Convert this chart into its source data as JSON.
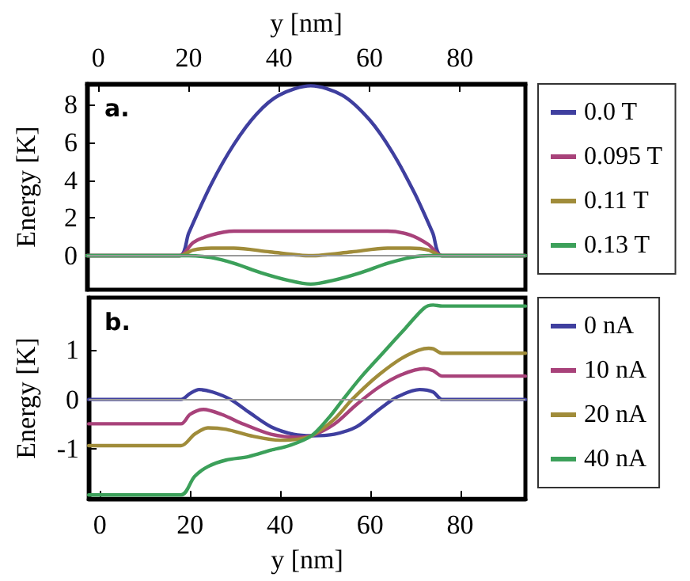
{
  "chart_data": [
    {
      "type": "line",
      "xlabel": "y [nm]",
      "ylabel": "Energy [K]",
      "annotations": [
        "a."
      ],
      "xlim": [
        -2.5,
        94.5
      ],
      "xticks": [
        0,
        20,
        40,
        60,
        80
      ],
      "ylim": [
        -1.8,
        9.1
      ],
      "yticks": [
        0,
        2,
        4,
        6,
        8
      ],
      "grid": false,
      "legend": "right",
      "marker": "none",
      "line_style": "solid",
      "ref_lines": [
        {
          "axis": "y",
          "value": 0,
          "color": "#999999"
        }
      ],
      "series": [
        {
          "name": "0.0 T",
          "color": "#3f3f9f",
          "x": [
            -2.5,
            18,
            20,
            25,
            30,
            35,
            40,
            47,
            54,
            60,
            65,
            70,
            74,
            76,
            94.5
          ],
          "values": [
            0,
            0,
            1.2,
            3.8,
            5.9,
            7.5,
            8.5,
            9,
            8.5,
            7.2,
            5.5,
            3.3,
            1.2,
            0,
            0
          ]
        },
        {
          "name": "0.095 T",
          "color": "#a8427a",
          "x": [
            -2.5,
            18,
            21,
            25,
            30,
            40,
            47,
            55,
            64,
            69,
            73,
            76,
            94.5
          ],
          "values": [
            0,
            0,
            0.7,
            1.1,
            1.3,
            1.3,
            1.3,
            1.3,
            1.3,
            1.1,
            0.6,
            0,
            0
          ]
        },
        {
          "name": "0.11 T",
          "color": "#a08c3a",
          "x": [
            -2.5,
            18,
            21,
            25,
            30,
            38,
            47,
            56,
            64,
            69,
            73,
            76,
            94.5
          ],
          "values": [
            0,
            0,
            0.3,
            0.4,
            0.4,
            0.2,
            0,
            0.2,
            0.4,
            0.4,
            0.3,
            0,
            0
          ]
        },
        {
          "name": "0.13 T",
          "color": "#3ca05a",
          "x": [
            -2.5,
            20,
            25,
            30,
            36,
            42,
            47,
            52,
            58,
            64,
            69,
            73,
            94.5
          ],
          "values": [
            0,
            0,
            -0.1,
            -0.4,
            -0.9,
            -1.3,
            -1.5,
            -1.3,
            -0.9,
            -0.4,
            -0.1,
            0,
            0
          ]
        }
      ]
    },
    {
      "type": "line",
      "xlabel": "y [nm]",
      "ylabel": "Energy [K]",
      "annotations": [
        "b."
      ],
      "xlim": [
        -2.5,
        94.5
      ],
      "xticks": [
        0,
        20,
        40,
        60,
        80
      ],
      "ylim": [
        -2,
        2.05
      ],
      "yticks": [
        -1,
        0,
        1
      ],
      "grid": false,
      "legend": "right",
      "marker": "none",
      "line_style": "solid",
      "ref_lines": [
        {
          "axis": "y",
          "value": 0,
          "color": "#999999"
        }
      ],
      "series": [
        {
          "name": "0 nA",
          "color": "#3f3f9f",
          "x": [
            -2.5,
            18,
            20,
            22,
            25,
            29,
            33,
            38,
            43,
            47,
            52,
            57,
            62,
            66,
            71,
            74,
            76,
            94.5
          ],
          "values": [
            0,
            0,
            0.12,
            0.2,
            0.15,
            0,
            -0.25,
            -0.55,
            -0.7,
            -0.73,
            -0.7,
            -0.55,
            -0.2,
            0.05,
            0.2,
            0.15,
            0,
            0
          ]
        },
        {
          "name": "10 nA",
          "color": "#a8427a",
          "x": [
            -2.5,
            18,
            20,
            23,
            27,
            32,
            38,
            44,
            47,
            52,
            57,
            62,
            67,
            72,
            74,
            76,
            94.5
          ],
          "values": [
            -0.49,
            -0.49,
            -0.3,
            -0.2,
            -0.3,
            -0.5,
            -0.7,
            -0.76,
            -0.73,
            -0.5,
            -0.1,
            0.25,
            0.5,
            0.62,
            0.58,
            0.47,
            0.47
          ]
        },
        {
          "name": "20 nA",
          "color": "#a08c3a",
          "x": [
            -2.5,
            18,
            21,
            24,
            28,
            34,
            40,
            44,
            47,
            52,
            56,
            62,
            68,
            73,
            74,
            76,
            94.5
          ],
          "values": [
            -0.93,
            -0.93,
            -0.7,
            -0.57,
            -0.6,
            -0.74,
            -0.82,
            -0.8,
            -0.73,
            -0.4,
            0,
            0.5,
            0.88,
            1.03,
            1.02,
            0.93,
            0.93
          ]
        },
        {
          "name": "40 nA",
          "color": "#3ca05a",
          "x": [
            -2.5,
            18,
            21,
            24,
            28,
            33,
            38,
            42,
            47,
            51,
            54,
            58,
            63,
            68,
            72,
            74,
            76,
            94.5
          ],
          "values": [
            -1.92,
            -1.92,
            -1.55,
            -1.35,
            -1.22,
            -1.15,
            -1.02,
            -0.93,
            -0.73,
            -0.35,
            0,
            0.45,
            0.95,
            1.45,
            1.84,
            1.9,
            1.88,
            1.88
          ]
        }
      ]
    }
  ]
}
